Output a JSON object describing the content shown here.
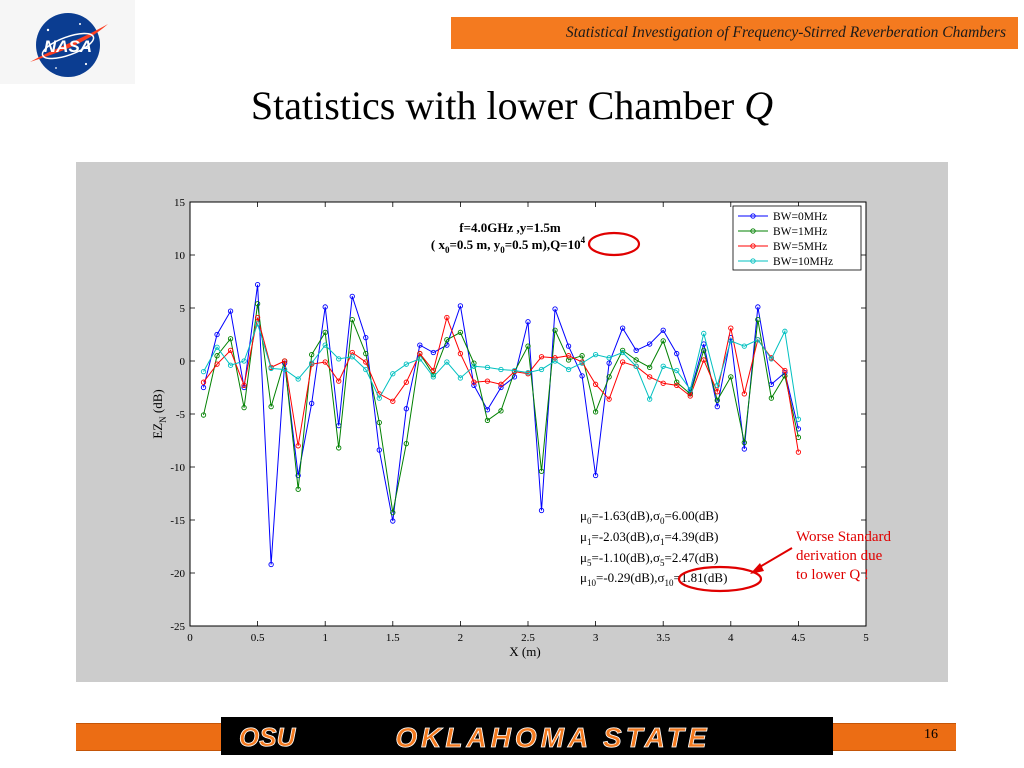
{
  "header": {
    "banner_text": "Statistical Investigation of Frequency-Stirred Reverberation Chambers",
    "logo_text": "NASA"
  },
  "slide": {
    "title_text": "Statistics with lower Chamber ",
    "title_italic": "Q",
    "page_number": "16"
  },
  "footer": {
    "logo_text": "OKLAHOMA STATE",
    "mark_text": "OSU",
    "band_color": "#ec6d14"
  },
  "annotation": {
    "line1": "Worse Standard",
    "line2": "derivation due",
    "line3": "to lower Q !",
    "color": "#e00000"
  },
  "chart_data": {
    "type": "line",
    "xlabel_main": "X (m)",
    "ylabel_main": "EZ",
    "ylabel_sub": "N",
    "ylabel_unit": " (dB)",
    "xlim": [
      0,
      5
    ],
    "ylim": [
      -25,
      15
    ],
    "xticks": [
      "0",
      "0.5",
      "1",
      "1.5",
      "2",
      "2.5",
      "3",
      "3.5",
      "4",
      "4.5",
      "5"
    ],
    "yticks": [
      "15",
      "10",
      "5",
      "0",
      "-5",
      "-10",
      "-15",
      "-20",
      "-25"
    ],
    "grid": false,
    "legend_position": "top-right",
    "inner_title": {
      "line1": "f=4.0GHz ,y=1.5m",
      "line2_a": "( x",
      "line2_sub1": "0",
      "line2_b": "=0.5 m, y",
      "line2_sub2": "0",
      "line2_c": "=0.5 m),Q=10",
      "line2_sup": "4"
    },
    "stats": [
      {
        "mu": "μ",
        "mu_sub": "0",
        "mid": "=-1.63(dB),",
        "sigma": "σ",
        "sigma_sub": "0",
        "end": "=6.00(dB)"
      },
      {
        "mu": "μ",
        "mu_sub": "1",
        "mid": "=-2.03(dB),",
        "sigma": "σ",
        "sigma_sub": "1",
        "end": "=4.39(dB)"
      },
      {
        "mu": "μ",
        "mu_sub": "5",
        "mid": "=-1.10(dB),",
        "sigma": "σ",
        "sigma_sub": "5",
        "end": "=2.47(dB)"
      },
      {
        "mu": "μ",
        "mu_sub": "10",
        "mid": "=-0.29(dB),",
        "sigma": "σ",
        "sigma_sub": "10",
        "end": "=1.81(dB)"
      }
    ],
    "x": [
      0.1,
      0.2,
      0.3,
      0.4,
      0.5,
      0.6,
      0.7,
      0.8,
      0.9,
      1.0,
      1.1,
      1.2,
      1.3,
      1.4,
      1.5,
      1.6,
      1.7,
      1.8,
      1.9,
      2.0,
      2.1,
      2.2,
      2.3,
      2.4,
      2.5,
      2.6,
      2.7,
      2.8,
      2.9,
      3.0,
      3.1,
      3.2,
      3.3,
      3.4,
      3.5,
      3.6,
      3.7,
      3.8,
      3.9,
      4.0,
      4.1,
      4.2,
      4.3,
      4.4,
      4.5
    ],
    "series": [
      {
        "name": "BW=0MHz",
        "color": "#0000ff",
        "values": [
          -2.5,
          2.5,
          4.7,
          -2.5,
          7.2,
          -19.2,
          -0.2,
          -10.8,
          -4.0,
          5.1,
          -6.1,
          6.1,
          2.2,
          -8.4,
          -15.1,
          -4.5,
          1.5,
          0.8,
          1.5,
          5.2,
          -2.3,
          -4.6,
          -2.5,
          -1.5,
          3.7,
          -14.1,
          4.9,
          1.4,
          -1.4,
          -10.8,
          -0.2,
          3.1,
          1.0,
          1.6,
          2.9,
          0.7,
          -3.0,
          1.6,
          -4.3,
          2.2,
          -8.3,
          5.1,
          -2.2,
          -1.1,
          -6.4
        ]
      },
      {
        "name": "BW=1MHz",
        "color": "#008000",
        "values": [
          -5.1,
          0.5,
          2.1,
          -4.4,
          5.4,
          -4.3,
          0.0,
          -12.1,
          0.6,
          2.7,
          -8.2,
          3.9,
          0.7,
          -5.8,
          -14.3,
          -7.8,
          0.7,
          -1.3,
          2.0,
          2.7,
          -0.2,
          -5.6,
          -4.7,
          -1.0,
          1.4,
          -10.4,
          2.9,
          0.1,
          0.5,
          -4.8,
          -1.5,
          1.0,
          0.1,
          -0.6,
          1.9,
          -2.0,
          -3.1,
          1.0,
          -3.7,
          -1.5,
          -7.7,
          3.9,
          -3.5,
          -1.4,
          -7.2
        ]
      },
      {
        "name": "BW=5MHz",
        "color": "#ff0000",
        "values": [
          -2.0,
          -0.3,
          1.0,
          -2.3,
          4.1,
          -0.6,
          0.0,
          -8.0,
          -0.3,
          -0.1,
          -1.9,
          0.8,
          -0.1,
          -3.1,
          -3.8,
          -2.0,
          0.7,
          -0.9,
          4.1,
          0.7,
          -2.0,
          -1.9,
          -2.2,
          -1.0,
          -1.2,
          0.4,
          0.3,
          0.5,
          -0.1,
          -2.2,
          -3.6,
          -0.1,
          -0.5,
          -1.5,
          -2.1,
          -2.3,
          -3.3,
          0.1,
          -2.9,
          3.1,
          -3.1,
          2.0,
          0.3,
          -0.9,
          -8.6
        ]
      },
      {
        "name": "BW=10MHz",
        "color": "#00c0c0",
        "values": [
          -1.0,
          1.3,
          -0.4,
          0.0,
          3.5,
          -0.7,
          -0.8,
          -1.7,
          -0.2,
          1.5,
          0.2,
          0.4,
          -0.8,
          -3.5,
          -1.2,
          -0.3,
          0.2,
          -1.5,
          -0.1,
          -1.6,
          -0.5,
          -0.6,
          -0.8,
          -0.9,
          -1.1,
          -0.8,
          0.0,
          -0.8,
          -0.2,
          0.6,
          0.3,
          0.8,
          -0.5,
          -3.6,
          -0.5,
          -0.9,
          -2.7,
          2.6,
          -2.3,
          1.9,
          1.4,
          2.0,
          0.2,
          2.8,
          -5.5
        ]
      }
    ]
  }
}
